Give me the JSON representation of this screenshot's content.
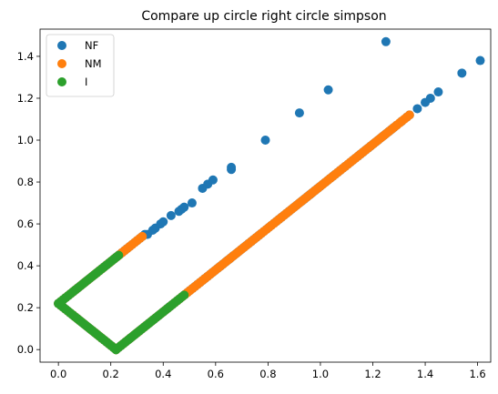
{
  "chart_data": {
    "type": "scatter",
    "title": "Compare up circle right circle simpson",
    "xlabel": "",
    "ylabel": "",
    "xlim": [
      -0.07,
      1.65
    ],
    "ylim": [
      -0.06,
      1.53
    ],
    "xticks": [
      0.0,
      0.2,
      0.4,
      0.6,
      0.8,
      1.0,
      1.2,
      1.4,
      1.6
    ],
    "yticks": [
      0.0,
      0.2,
      0.4,
      0.6,
      0.8,
      1.0,
      1.2,
      1.4
    ],
    "xtick_labels": [
      "0.0",
      "0.2",
      "0.4",
      "0.6",
      "0.8",
      "1.0",
      "1.2",
      "1.4",
      "1.6"
    ],
    "ytick_labels": [
      "0.0",
      "0.2",
      "0.4",
      "0.6",
      "0.8",
      "1.0",
      "1.2",
      "1.4"
    ],
    "grid": false,
    "legend_position": "top-left",
    "series": [
      {
        "name": "NF",
        "color": "#1f77b4",
        "segments": [
          {
            "from": [
              0.0,
              0.22
            ],
            "to": [
              0.22,
              0.0
            ],
            "n": 25
          },
          {
            "from": [
              0.22,
              0.0
            ],
            "to": [
              1.28,
              1.06
            ],
            "n": 110
          },
          {
            "from": [
              0.0,
              0.22
            ],
            "to": [
              0.33,
              0.55
            ],
            "n": 35
          }
        ],
        "points": [
          [
            0.34,
            0.55
          ],
          [
            0.36,
            0.57
          ],
          [
            0.37,
            0.58
          ],
          [
            0.39,
            0.6
          ],
          [
            0.4,
            0.61
          ],
          [
            0.43,
            0.64
          ],
          [
            0.46,
            0.66
          ],
          [
            0.47,
            0.67
          ],
          [
            0.48,
            0.68
          ],
          [
            0.51,
            0.7
          ],
          [
            0.55,
            0.77
          ],
          [
            0.57,
            0.79
          ],
          [
            0.59,
            0.81
          ],
          [
            0.66,
            0.86
          ],
          [
            0.66,
            0.87
          ],
          [
            0.79,
            1.0
          ],
          [
            0.92,
            1.13
          ],
          [
            1.03,
            1.24
          ],
          [
            1.25,
            1.47
          ],
          [
            1.29,
            1.07
          ],
          [
            1.31,
            1.09
          ],
          [
            1.33,
            1.11
          ],
          [
            1.34,
            1.12
          ],
          [
            1.37,
            1.15
          ],
          [
            1.4,
            1.18
          ],
          [
            1.42,
            1.2
          ],
          [
            1.45,
            1.23
          ],
          [
            1.54,
            1.32
          ],
          [
            1.61,
            1.38
          ]
        ]
      },
      {
        "name": "NM",
        "color": "#ff7f0e",
        "segments": [
          {
            "from": [
              0.0,
              0.22
            ],
            "to": [
              0.22,
              0.0
            ],
            "n": 25
          },
          {
            "from": [
              0.22,
              0.0
            ],
            "to": [
              1.34,
              1.12
            ],
            "n": 120
          },
          {
            "from": [
              0.0,
              0.22
            ],
            "to": [
              0.32,
              0.54
            ],
            "n": 35
          }
        ],
        "points": []
      },
      {
        "name": "I",
        "color": "#2ca02c",
        "segments": [
          {
            "from": [
              0.0,
              0.22
            ],
            "to": [
              0.22,
              0.0
            ],
            "n": 26
          },
          {
            "from": [
              0.22,
              0.0
            ],
            "to": [
              0.48,
              0.26
            ],
            "n": 30
          },
          {
            "from": [
              0.0,
              0.22
            ],
            "to": [
              0.23,
              0.45
            ],
            "n": 26
          }
        ],
        "points": []
      }
    ]
  }
}
